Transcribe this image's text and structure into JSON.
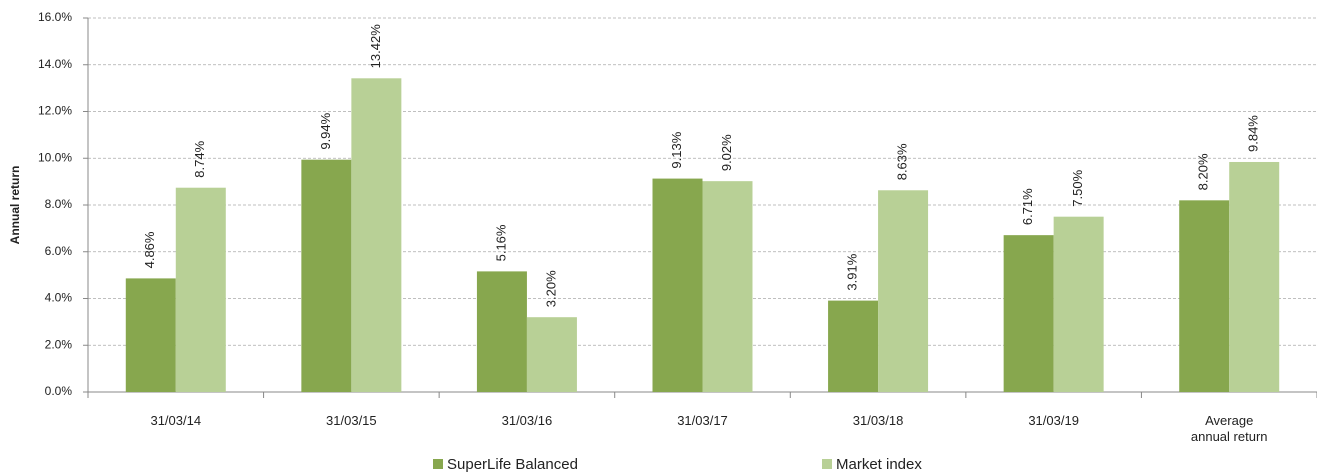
{
  "chart_data": {
    "type": "bar",
    "y_label": "Annual return",
    "categories": [
      "31/03/14",
      "31/03/15",
      "31/03/16",
      "31/03/17",
      "31/03/18",
      "31/03/19",
      "Average annual return"
    ],
    "series": [
      {
        "name": "SuperLife Balanced",
        "color": "#87a74e",
        "values": [
          4.86,
          9.94,
          5.16,
          9.13,
          3.91,
          6.71,
          8.2
        ],
        "value_labels": [
          "4.86%",
          "9.94%",
          "5.16%",
          "9.13%",
          "3.91%",
          "6.71%",
          "8.20%"
        ]
      },
      {
        "name": "Market index",
        "color": "#b8d096",
        "values": [
          8.74,
          13.42,
          3.2,
          9.02,
          8.63,
          7.5,
          9.84
        ],
        "value_labels": [
          "8.74%",
          "13.42%",
          "3.20%",
          "9.02%",
          "8.63%",
          "7.50%",
          "9.84%"
        ]
      }
    ],
    "ylim": [
      0,
      16
    ],
    "yticks": [
      {
        "value": 0,
        "label": "0.0%"
      },
      {
        "value": 2,
        "label": "2.0%"
      },
      {
        "value": 4,
        "label": "4.0%"
      },
      {
        "value": 6,
        "label": "6.0%"
      },
      {
        "value": 8,
        "label": "8.0%"
      },
      {
        "value": 10,
        "label": "10.0%"
      },
      {
        "value": 12,
        "label": "12.0%"
      },
      {
        "value": 14,
        "label": "14.0%"
      },
      {
        "value": 16,
        "label": "16.0%"
      }
    ],
    "grid": true
  }
}
